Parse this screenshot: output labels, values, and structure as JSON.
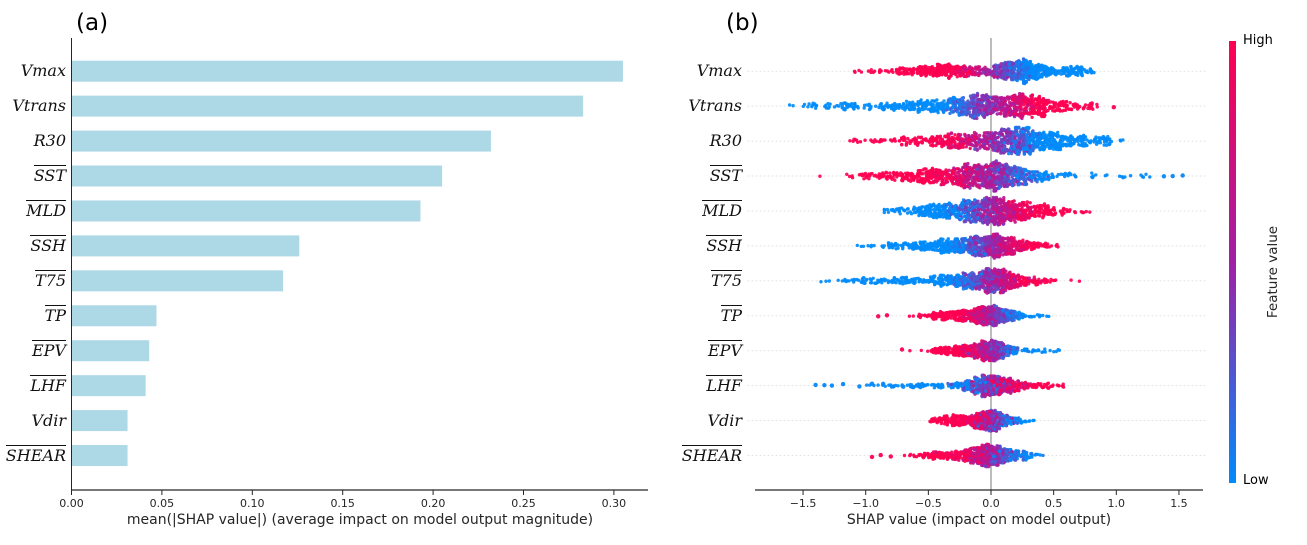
{
  "figure": {
    "panel_a_label": "(a)",
    "panel_b_label": "(b)",
    "colors": {
      "bar_fill": "#add8e6",
      "axis": "#262626",
      "grid_dotted": "#e1e1e1",
      "zero_line": "#999999",
      "shap_low": "#008bfb",
      "shap_mid": "#a11fa5",
      "shap_high": "#ff0051",
      "text": "#000000"
    }
  },
  "chart_data": [
    {
      "type": "bar",
      "panel": "a",
      "orientation": "horizontal",
      "title": "(a)",
      "categories": [
        "Vmax",
        "Vtrans",
        "R30",
        "SST",
        "MLD",
        "SSH",
        "T75",
        "TP",
        "EPV",
        "LHF",
        "Vdir",
        "SHEAR"
      ],
      "overline": [
        false,
        false,
        false,
        true,
        true,
        true,
        true,
        true,
        true,
        true,
        false,
        true
      ],
      "values": [
        0.305,
        0.283,
        0.232,
        0.205,
        0.193,
        0.126,
        0.117,
        0.047,
        0.043,
        0.041,
        0.031,
        0.031
      ],
      "xlabel": "mean(|SHAP value|) (average impact on model output magnitude)",
      "xticks": [
        0.0,
        0.05,
        0.1,
        0.15,
        0.2,
        0.25,
        0.3
      ],
      "xtick_labels": [
        "0.00",
        "0.05",
        "0.10",
        "0.15",
        "0.20",
        "0.25",
        "0.30"
      ],
      "xlim": [
        0,
        0.32
      ],
      "grid": false,
      "bar_color": "#add8e6"
    },
    {
      "type": "beeswarm",
      "panel": "b",
      "title": "(b)",
      "xlabel": "SHAP value (impact on model output)",
      "xticks": [
        -1.5,
        -1.0,
        -0.5,
        0.0,
        0.5,
        1.0,
        1.5
      ],
      "xtick_labels": [
        "−1.5",
        "−1.0",
        "−0.5",
        "0.0",
        "0.5",
        "1.0",
        "1.5"
      ],
      "xlim": [
        -1.9,
        1.72
      ],
      "zero_line_x": 0,
      "colorbar": {
        "high_label": "High",
        "low_label": "Low",
        "title": "Feature value"
      },
      "features": [
        {
          "name": "Vmax",
          "overline": false,
          "shap_range": [
            -1.25,
            0.84
          ],
          "red_side": "negative",
          "n": 900,
          "maxh": 13,
          "cs": 0.3,
          "noise": 0.22,
          "comps": [
            [
              -0.35,
              0.2,
              0.34
            ],
            [
              -0.75,
              0.22,
              0.06
            ],
            [
              0.2,
              0.12,
              0.42
            ],
            [
              0.45,
              0.18,
              0.14
            ],
            [
              0.7,
              0.1,
              0.04
            ]
          ],
          "outliers": []
        },
        {
          "name": "Vtrans",
          "overline": false,
          "shap_range": [
            -1.78,
            0.86
          ],
          "red_side": "positive",
          "n": 950,
          "maxh": 14,
          "cs": 0.35,
          "noise": 0.25,
          "comps": [
            [
              -0.1,
              0.16,
              0.3
            ],
            [
              0.24,
              0.14,
              0.32
            ],
            [
              -0.45,
              0.25,
              0.18
            ],
            [
              -1.0,
              0.35,
              0.1
            ],
            [
              0.5,
              0.18,
              0.08
            ],
            [
              0.78,
              0.06,
              0.02
            ]
          ],
          "outliers": [
            [
              0.98,
              "high"
            ]
          ]
        },
        {
          "name": "R30",
          "overline": false,
          "shap_range": [
            -1.14,
            1.06
          ],
          "red_side": "negative",
          "n": 950,
          "maxh": 15,
          "cs": 0.35,
          "noise": 0.3,
          "comps": [
            [
              -0.18,
              0.18,
              0.26
            ],
            [
              0.2,
              0.15,
              0.38
            ],
            [
              0.5,
              0.2,
              0.2
            ],
            [
              -0.55,
              0.25,
              0.12
            ],
            [
              0.85,
              0.1,
              0.04
            ]
          ],
          "outliers": []
        },
        {
          "name": "SST",
          "overline": true,
          "shap_range": [
            -1.4,
            1.3
          ],
          "red_side": "negative",
          "n": 950,
          "maxh": 16,
          "cs": 0.4,
          "noise": 0.3,
          "comps": [
            [
              0.02,
              0.15,
              0.42
            ],
            [
              -0.3,
              0.2,
              0.28
            ],
            [
              -0.7,
              0.3,
              0.12
            ],
            [
              0.3,
              0.2,
              0.14
            ],
            [
              0.8,
              0.3,
              0.04
            ]
          ],
          "outliers": [
            [
              1.38,
              "low"
            ],
            [
              1.45,
              "low"
            ],
            [
              1.53,
              "low"
            ]
          ]
        },
        {
          "name": "MLD",
          "overline": true,
          "shap_range": [
            -0.9,
            0.79
          ],
          "red_side": "positive",
          "n": 900,
          "maxh": 15,
          "cs": 0.3,
          "noise": 0.28,
          "comps": [
            [
              0.0,
              0.15,
              0.45
            ],
            [
              -0.3,
              0.18,
              0.25
            ],
            [
              0.3,
              0.15,
              0.2
            ],
            [
              -0.6,
              0.18,
              0.07
            ],
            [
              0.6,
              0.1,
              0.03
            ]
          ],
          "outliers": []
        },
        {
          "name": "SSH",
          "overline": true,
          "shap_range": [
            -1.14,
            0.71
          ],
          "red_side": "positive",
          "n": 850,
          "maxh": 13,
          "cs": 0.28,
          "noise": 0.25,
          "comps": [
            [
              0.03,
              0.12,
              0.5
            ],
            [
              -0.25,
              0.15,
              0.28
            ],
            [
              -0.55,
              0.2,
              0.12
            ],
            [
              0.3,
              0.13,
              0.08
            ],
            [
              -0.95,
              0.15,
              0.02
            ]
          ],
          "outliers": []
        },
        {
          "name": "T75",
          "overline": true,
          "shap_range": [
            -1.37,
            0.76
          ],
          "red_side": "positive",
          "n": 850,
          "maxh": 13,
          "cs": 0.3,
          "noise": 0.3,
          "comps": [
            [
              0.04,
              0.11,
              0.46
            ],
            [
              -0.2,
              0.18,
              0.28
            ],
            [
              -0.55,
              0.25,
              0.14
            ],
            [
              0.3,
              0.14,
              0.08
            ],
            [
              -1.1,
              0.2,
              0.04
            ]
          ],
          "outliers": []
        },
        {
          "name": "TP",
          "overline": true,
          "shap_range": [
            -0.88,
            0.5
          ],
          "red_side": "negative",
          "n": 700,
          "maxh": 11,
          "cs": 0.22,
          "noise": 0.3,
          "comps": [
            [
              0.02,
              0.08,
              0.52
            ],
            [
              -0.15,
              0.12,
              0.26
            ],
            [
              -0.35,
              0.12,
              0.14
            ],
            [
              0.2,
              0.12,
              0.08
            ]
          ],
          "outliers": [
            [
              -0.9,
              "high"
            ],
            [
              -0.83,
              "high"
            ]
          ]
        },
        {
          "name": "EPV",
          "overline": true,
          "shap_range": [
            -0.66,
            0.62
          ],
          "red_side": "negative",
          "n": 700,
          "maxh": 11,
          "cs": 0.22,
          "noise": 0.32,
          "comps": [
            [
              0.02,
              0.08,
              0.52
            ],
            [
              -0.15,
              0.11,
              0.28
            ],
            [
              -0.35,
              0.1,
              0.12
            ],
            [
              0.25,
              0.15,
              0.08
            ]
          ],
          "outliers": [
            [
              -0.71,
              "high"
            ]
          ]
        },
        {
          "name": "LHF",
          "overline": true,
          "shap_range": [
            -1.1,
            0.63
          ],
          "red_side": "positive",
          "n": 700,
          "maxh": 12,
          "cs": 0.25,
          "noise": 0.5,
          "comps": [
            [
              0.0,
              0.09,
              0.5
            ],
            [
              0.18,
              0.12,
              0.22
            ],
            [
              -0.15,
              0.1,
              0.16
            ],
            [
              -0.45,
              0.25,
              0.08
            ],
            [
              0.45,
              0.1,
              0.04
            ]
          ],
          "outliers": [
            [
              -1.4,
              "low"
            ],
            [
              -1.33,
              "low"
            ],
            [
              -1.27,
              "low"
            ],
            [
              -1.18,
              "low"
            ],
            [
              -1.05,
              "low"
            ],
            [
              -0.95,
              "low"
            ],
            [
              -0.86,
              "low"
            ],
            [
              -0.78,
              "low"
            ],
            [
              -0.7,
              "low"
            ],
            [
              -0.62,
              "low"
            ],
            [
              -0.55,
              "low"
            ]
          ]
        },
        {
          "name": "Vdir",
          "overline": false,
          "shap_range": [
            -0.5,
            0.38
          ],
          "red_side": "negative",
          "n": 650,
          "maxh": 11,
          "cs": 0.18,
          "noise": 0.5,
          "comps": [
            [
              0.0,
              0.07,
              0.48
            ],
            [
              -0.15,
              0.11,
              0.3
            ],
            [
              -0.33,
              0.08,
              0.12
            ],
            [
              0.15,
              0.09,
              0.1
            ]
          ],
          "outliers": []
        },
        {
          "name": "SHEAR",
          "overline": true,
          "shap_range": [
            -0.75,
            0.48
          ],
          "red_side": "negative",
          "n": 700,
          "maxh": 12,
          "cs": 0.25,
          "noise": 0.38,
          "comps": [
            [
              0.0,
              0.09,
              0.5
            ],
            [
              -0.22,
              0.13,
              0.28
            ],
            [
              0.18,
              0.11,
              0.16
            ],
            [
              -0.5,
              0.1,
              0.06
            ]
          ],
          "outliers": [
            [
              -0.95,
              "high"
            ],
            [
              -0.88,
              "high"
            ],
            [
              -0.8,
              "high"
            ]
          ]
        }
      ]
    }
  ]
}
